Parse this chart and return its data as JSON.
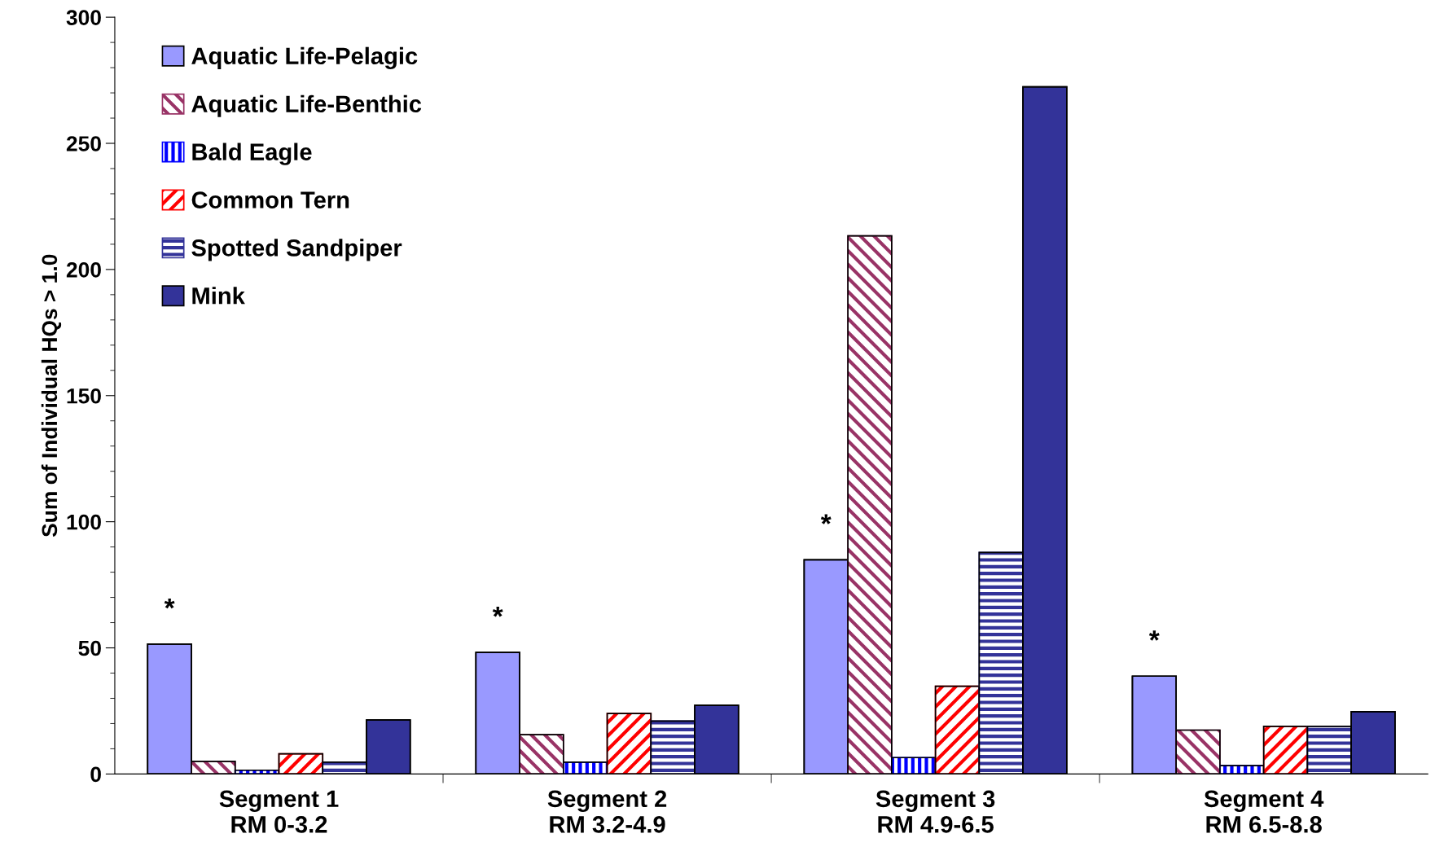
{
  "chart_data": {
    "type": "bar",
    "ylabel": "Sum of Individual HQs > 1.0",
    "categories": [
      "Segment 1\nRM 0-3.2",
      "Segment 2\nRM 3.2-4.9",
      "Segment 3\nRM 4.9-6.5",
      "Segment 4\nRM 6.5-8.8"
    ],
    "series": [
      {
        "name": "Aquatic Life-Pelagic",
        "color": "#9999ff",
        "values": [
          51.5,
          48.2,
          84.9,
          38.8
        ]
      },
      {
        "name": "Aquatic Life-Benthic",
        "color": "#993366",
        "values": [
          5,
          15.6,
          213.3,
          17.4
        ]
      },
      {
        "name": "Bald Eagle",
        "color": "#0000ff",
        "values": [
          1.5,
          4.7,
          6.5,
          3.3
        ]
      },
      {
        "name": "Common Tern",
        "color": "#ff0000",
        "values": [
          8,
          24,
          34.8,
          18.9
        ]
      },
      {
        "name": "Spotted Sandpiper",
        "color": "#333399",
        "values": [
          4.7,
          21,
          87.8,
          18.9
        ]
      },
      {
        "name": "Mink",
        "color": "#333399",
        "values": [
          21.4,
          27.2,
          272.4,
          24.7
        ]
      }
    ],
    "ylim": [
      0,
      300
    ],
    "yticks": [
      0,
      50,
      100,
      150,
      200,
      250,
      300
    ],
    "grid": false,
    "legend": "top left",
    "annotations": [
      "*",
      "*",
      "*",
      "*"
    ]
  }
}
